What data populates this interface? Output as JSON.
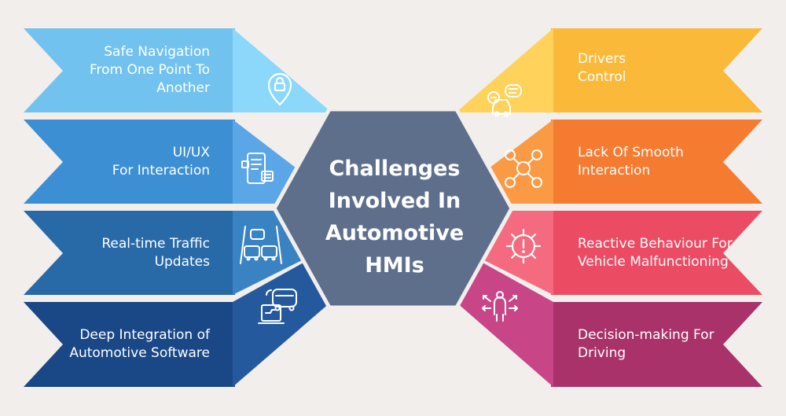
{
  "center": {
    "lines": [
      "Challenges",
      "Involved In",
      "Automotive",
      "HMIs"
    ],
    "color": "#5e6f8c"
  },
  "left_items": [
    {
      "lines": [
        "Safe Navigation",
        "From One Point To",
        "Another"
      ],
      "icon": "location-lock-icon",
      "color": "#72c2ef",
      "accent": "#8bd8fb"
    },
    {
      "lines": [
        "UI/UX",
        "For Interaction"
      ],
      "icon": "mobile-ui-icon",
      "color": "#3d8fd3",
      "accent": "#5aa6e6"
    },
    {
      "lines": [
        "Real-time Traffic",
        "Updates"
      ],
      "icon": "traffic-cars-icon",
      "color": "#286aa8",
      "accent": "#3a83c2"
    },
    {
      "lines": [
        "Deep Integration of",
        "Automotive Software"
      ],
      "icon": "car-software-icon",
      "color": "#1a4887",
      "accent": "#25599d"
    }
  ],
  "right_items": [
    {
      "lines": [
        "Drivers",
        "Control"
      ],
      "icon": "car-chat-icon",
      "color": "#fbb93a",
      "accent": "#ffd25b"
    },
    {
      "lines": [
        "Lack Of Smooth",
        "Interaction"
      ],
      "icon": "user-network-icon",
      "color": "#f57b31",
      "accent": "#fb9a45"
    },
    {
      "lines": [
        "Reactive Behaviour For",
        "Vehicle Malfunctioning"
      ],
      "icon": "gear-alert-icon",
      "color": "#eb4b63",
      "accent": "#f46a7e"
    },
    {
      "lines": [
        "Decision-making For",
        "Driving"
      ],
      "icon": "person-decision-icon",
      "color": "#a9326a",
      "accent": "#c84687"
    }
  ]
}
